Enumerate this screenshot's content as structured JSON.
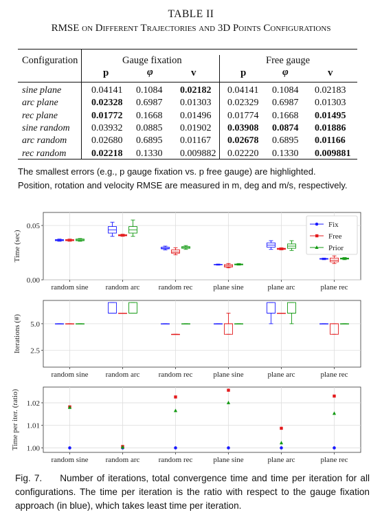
{
  "table": {
    "caption_line1": "TABLE II",
    "caption_line2": "RMSE on Different Trajectories and 3D Points Configurations",
    "col_config": "Configuration",
    "group_gauge": "Gauge fixation",
    "group_free": "Free gauge",
    "sub_p": "p",
    "sub_phi": "φ",
    "sub_v": "v",
    "rows": [
      {
        "name": "sine plane",
        "g": [
          "0.04141",
          "0.1084",
          "0.02182"
        ],
        "f": [
          "0.04141",
          "0.1084",
          "0.02183"
        ],
        "bold_g": [
          false,
          false,
          true
        ],
        "bold_f": [
          false,
          false,
          false
        ]
      },
      {
        "name": "arc plane",
        "g": [
          "0.02328",
          "0.6987",
          "0.01303"
        ],
        "f": [
          "0.02329",
          "0.6987",
          "0.01303"
        ],
        "bold_g": [
          true,
          false,
          false
        ],
        "bold_f": [
          false,
          false,
          false
        ]
      },
      {
        "name": "rec plane",
        "g": [
          "0.01772",
          "0.1668",
          "0.01496"
        ],
        "f": [
          "0.01774",
          "0.1668",
          "0.01495"
        ],
        "bold_g": [
          true,
          false,
          false
        ],
        "bold_f": [
          false,
          false,
          true
        ]
      },
      {
        "name": "sine random",
        "g": [
          "0.03932",
          "0.0885",
          "0.01902"
        ],
        "f": [
          "0.03908",
          "0.0874",
          "0.01886"
        ],
        "bold_g": [
          false,
          false,
          false
        ],
        "bold_f": [
          true,
          true,
          true
        ]
      },
      {
        "name": "arc random",
        "g": [
          "0.02680",
          "0.6895",
          "0.01167"
        ],
        "f": [
          "0.02678",
          "0.6895",
          "0.01166"
        ],
        "bold_g": [
          false,
          false,
          false
        ],
        "bold_f": [
          true,
          false,
          true
        ]
      },
      {
        "name": "rec random",
        "g": [
          "0.02218",
          "0.1330",
          "0.009882"
        ],
        "f": [
          "0.02220",
          "0.1330",
          "0.009881"
        ],
        "bold_g": [
          true,
          false,
          false
        ],
        "bold_f": [
          false,
          false,
          true
        ]
      }
    ],
    "note_line1": "The smallest errors (e.g., p gauge fixation vs. p free gauge) are highlighted.",
    "note_line2": "Position, rotation and velocity RMSE are measured in m, deg and m/s, respectively."
  },
  "chart_data": [
    {
      "type": "box",
      "ylabel": "Time (sec)",
      "yticks": [
        "0.00",
        "0.05"
      ],
      "ylim": [
        0,
        0.062
      ],
      "categories": [
        "random sine",
        "random arc",
        "random rec",
        "plane sine",
        "plane arc",
        "plane rec"
      ],
      "legend": {
        "placement": "top-right",
        "entries": [
          "Fix",
          "Free",
          "Prior"
        ]
      },
      "series": [
        {
          "name": "Fix",
          "color": "#1a1aff",
          "boxes": [
            {
              "min": 0.0355,
              "q1": 0.036,
              "med": 0.0365,
              "q3": 0.037,
              "max": 0.0375
            },
            {
              "min": 0.04,
              "q1": 0.043,
              "med": 0.046,
              "q3": 0.049,
              "max": 0.053
            },
            {
              "min": 0.0275,
              "q1": 0.0285,
              "med": 0.029,
              "q3": 0.03,
              "max": 0.031
            },
            {
              "min": 0.0135,
              "q1": 0.0138,
              "med": 0.014,
              "q3": 0.0142,
              "max": 0.0145
            },
            {
              "min": 0.028,
              "q1": 0.03,
              "med": 0.032,
              "q3": 0.034,
              "max": 0.036
            },
            {
              "min": 0.0185,
              "q1": 0.019,
              "med": 0.0193,
              "q3": 0.0196,
              "max": 0.02
            }
          ]
        },
        {
          "name": "Free",
          "color": "#e31a1c",
          "boxes": [
            {
              "min": 0.0355,
              "q1": 0.036,
              "med": 0.0365,
              "q3": 0.037,
              "max": 0.0375
            },
            {
              "min": 0.04,
              "q1": 0.0405,
              "med": 0.041,
              "q3": 0.0415,
              "max": 0.042
            },
            {
              "min": 0.023,
              "q1": 0.0245,
              "med": 0.0255,
              "q3": 0.0275,
              "max": 0.0295
            },
            {
              "min": 0.011,
              "q1": 0.0118,
              "med": 0.0128,
              "q3": 0.014,
              "max": 0.015
            },
            {
              "min": 0.0275,
              "q1": 0.028,
              "med": 0.0285,
              "q3": 0.029,
              "max": 0.0295
            },
            {
              "min": 0.015,
              "q1": 0.0165,
              "med": 0.018,
              "q3": 0.02,
              "max": 0.022
            }
          ]
        },
        {
          "name": "Prior",
          "color": "#119911",
          "boxes": [
            {
              "min": 0.0355,
              "q1": 0.036,
              "med": 0.0367,
              "q3": 0.0375,
              "max": 0.038
            },
            {
              "min": 0.04,
              "q1": 0.043,
              "med": 0.046,
              "q3": 0.049,
              "max": 0.055
            },
            {
              "min": 0.028,
              "q1": 0.029,
              "med": 0.0298,
              "q3": 0.0305,
              "max": 0.0315
            },
            {
              "min": 0.0135,
              "q1": 0.0138,
              "med": 0.0142,
              "q3": 0.0145,
              "max": 0.015
            },
            {
              "min": 0.027,
              "q1": 0.029,
              "med": 0.031,
              "q3": 0.033,
              "max": 0.036
            },
            {
              "min": 0.0185,
              "q1": 0.0191,
              "med": 0.0195,
              "q3": 0.02,
              "max": 0.0205
            }
          ]
        }
      ]
    },
    {
      "type": "box",
      "ylabel": "Iterations (#)",
      "yticks": [
        "2.5",
        "5.0"
      ],
      "ylim": [
        0.9,
        7.2
      ],
      "categories": [
        "random sine",
        "random arc",
        "random rec",
        "plane sine",
        "plane arc",
        "plane rec"
      ],
      "series": [
        {
          "name": "Fix",
          "color": "#1a1aff",
          "boxes": [
            {
              "min": 5,
              "q1": 5,
              "med": 5,
              "q3": 5,
              "max": 5
            },
            {
              "min": 6,
              "q1": 6,
              "med": 6,
              "q3": 7,
              "max": 7
            },
            {
              "min": 5,
              "q1": 5,
              "med": 5,
              "q3": 5,
              "max": 5
            },
            {
              "min": 5,
              "q1": 5,
              "med": 5,
              "q3": 5,
              "max": 5
            },
            {
              "min": 5,
              "q1": 6,
              "med": 6,
              "q3": 7,
              "max": 7
            },
            {
              "min": 5,
              "q1": 5,
              "med": 5,
              "q3": 5,
              "max": 5
            }
          ]
        },
        {
          "name": "Free",
          "color": "#e31a1c",
          "boxes": [
            {
              "min": 5,
              "q1": 5,
              "med": 5,
              "q3": 5,
              "max": 5
            },
            {
              "min": 6,
              "q1": 6,
              "med": 6,
              "q3": 6,
              "max": 6
            },
            {
              "min": 4,
              "q1": 4,
              "med": 4,
              "q3": 4,
              "max": 4
            },
            {
              "min": 4,
              "q1": 4,
              "med": 5,
              "q3": 5,
              "max": 6
            },
            {
              "min": 6,
              "q1": 6,
              "med": 6,
              "q3": 6,
              "max": 6
            },
            {
              "min": 4,
              "q1": 4,
              "med": 5,
              "q3": 5,
              "max": 5
            }
          ]
        },
        {
          "name": "Prior",
          "color": "#119911",
          "boxes": [
            {
              "min": 5,
              "q1": 5,
              "med": 5,
              "q3": 5,
              "max": 5
            },
            {
              "min": 6,
              "q1": 6,
              "med": 6,
              "q3": 7,
              "max": 7
            },
            {
              "min": 5,
              "q1": 5,
              "med": 5,
              "q3": 5,
              "max": 5
            },
            {
              "min": 5,
              "q1": 5,
              "med": 5,
              "q3": 5,
              "max": 5
            },
            {
              "min": 5,
              "q1": 6,
              "med": 6,
              "q3": 7,
              "max": 7
            },
            {
              "min": 5,
              "q1": 5,
              "med": 5,
              "q3": 5,
              "max": 5
            }
          ]
        }
      ]
    },
    {
      "type": "scatter",
      "ylabel": "Time per iter. (ratio)",
      "yticks": [
        "1.00",
        "1.01",
        "1.02"
      ],
      "ylim": [
        0.998,
        1.027
      ],
      "categories": [
        "random sine",
        "random arc",
        "random rec",
        "plane sine",
        "plane arc",
        "plane rec"
      ],
      "series": [
        {
          "name": "Fix",
          "color": "#1a1aff",
          "marker": "circle",
          "values": [
            1.0,
            1.0,
            1.0,
            1.0,
            1.0,
            1.0
          ]
        },
        {
          "name": "Free",
          "color": "#e31a1c",
          "marker": "square",
          "values": [
            1.0182,
            1.0006,
            1.0226,
            1.0256,
            1.0087,
            1.023
          ]
        },
        {
          "name": "Prior",
          "color": "#119911",
          "marker": "triangle",
          "values": [
            1.0179,
            1.0003,
            1.0165,
            1.02,
            1.0022,
            1.0153
          ]
        }
      ]
    }
  ],
  "figure": {
    "label": "Fig. 7.",
    "caption": "Number of iterations, total convergence time and time per iteration for all configurations. The time per iteration is the ratio with respect to the gauge fixation approach (in blue), which takes least time per iteration."
  }
}
